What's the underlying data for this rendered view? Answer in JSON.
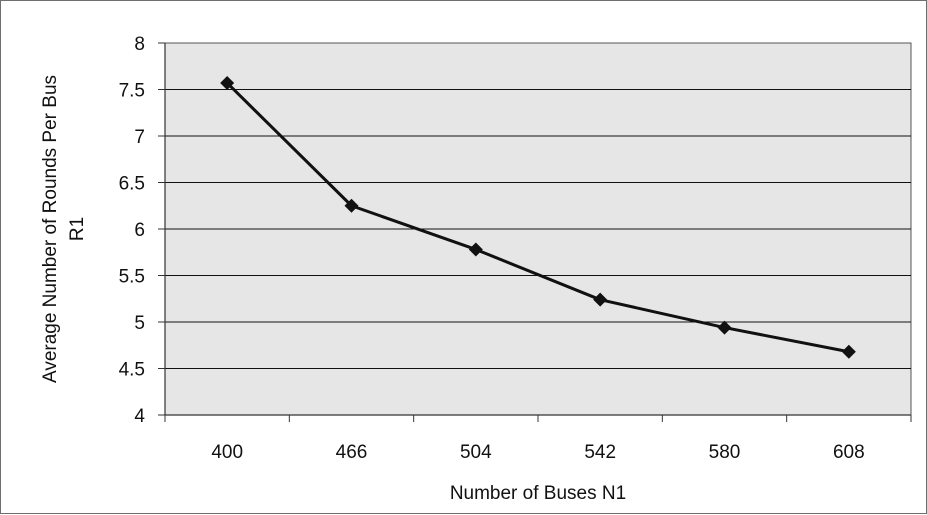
{
  "chart_data": {
    "type": "line",
    "title": "",
    "xlabel": "Number of Buses N1",
    "ylabel_lines": [
      "Average Number of Rounds Per Bus",
      "R1"
    ],
    "categories": [
      "400",
      "466",
      "504",
      "542",
      "580",
      "608"
    ],
    "series": [
      {
        "values": [
          7.57,
          6.25,
          5.78,
          5.24,
          4.94,
          4.68
        ]
      }
    ],
    "ylim": [
      4,
      8
    ],
    "yticks": [
      "4",
      "4.5",
      "5",
      "5.5",
      "6",
      "6.5",
      "7",
      "7.5",
      "8"
    ],
    "grid": true,
    "legend": "none",
    "colors": {
      "plot_background": "#e6e6e6",
      "gridline": "#111111",
      "line": "#111111",
      "marker": "#111111"
    },
    "marker": "diamond"
  }
}
